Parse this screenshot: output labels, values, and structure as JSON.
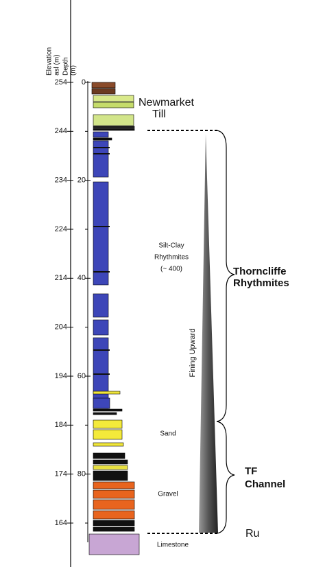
{
  "headers": {
    "elevation": [
      "Elevation",
      "asl (m)"
    ],
    "depth": [
      "Depth",
      "(m)"
    ]
  },
  "elevation_ticks": [
    254,
    244,
    234,
    224,
    214,
    204,
    194,
    184,
    174,
    164
  ],
  "depth_ticks": [
    0,
    20,
    40,
    60,
    80
  ],
  "units": {
    "newmarket": [
      "Newmarket",
      "Till"
    ],
    "thorncliffe": [
      "Thorncliffe",
      "Rhythmites"
    ],
    "tf_channel": [
      "TF",
      "Channel"
    ],
    "ru": "Ru"
  },
  "lithology": {
    "silt_clay": [
      "Silt-Clay",
      "Rhythmites",
      "(~ 400)"
    ],
    "sand": "Sand",
    "gravel": "Gravel",
    "limestone": "Limestone",
    "trend": "Fining Upward"
  }
}
